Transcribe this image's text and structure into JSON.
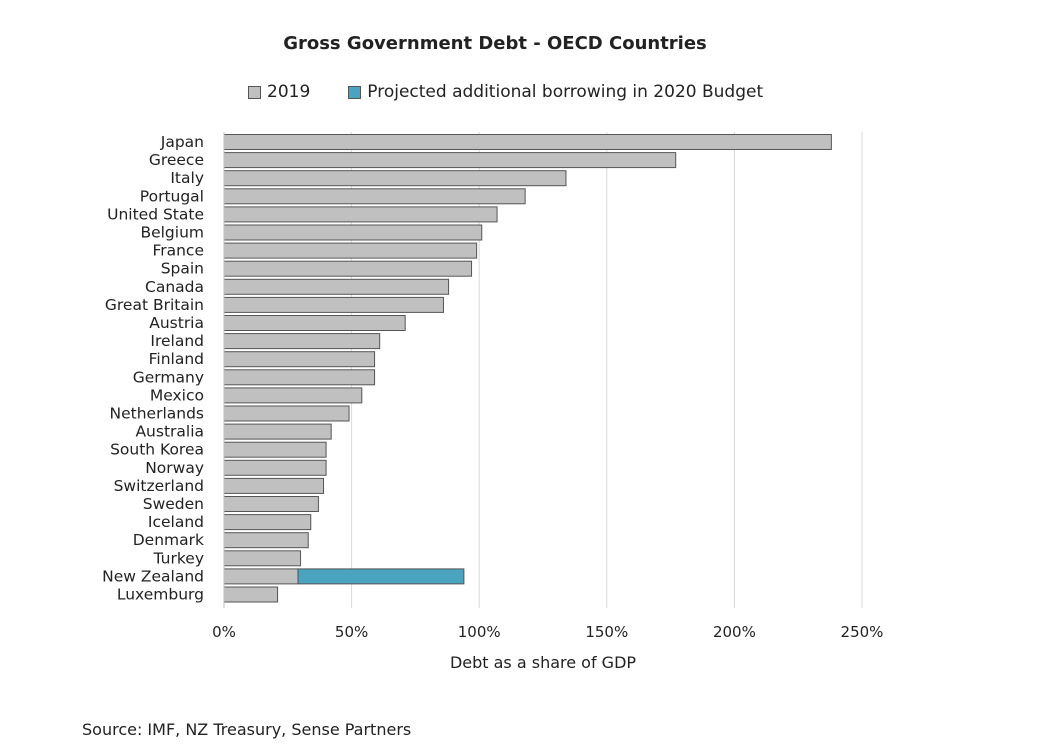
{
  "chart_data": {
    "type": "bar",
    "orientation": "horizontal",
    "stacked": true,
    "title": "Gross Government Debt - OECD Countries",
    "xlabel": "Debt as a share of GDP",
    "ylabel": "",
    "xlim": [
      0,
      250
    ],
    "x_ticks": [
      "0%",
      "50%",
      "100%",
      "150%",
      "200%",
      "250%"
    ],
    "x_tick_values": [
      0,
      50,
      100,
      150,
      200,
      250
    ],
    "grid": "vertical",
    "legend_position": "top",
    "categories": [
      "Japan",
      "Greece",
      "Italy",
      "Portugal",
      "United State",
      "Belgium",
      "France",
      "Spain",
      "Canada",
      "Great Britain",
      "Austria",
      "Ireland",
      "Finland",
      "Germany",
      "Mexico",
      "Netherlands",
      "Australia",
      "South Korea",
      "Norway",
      "Switzerland",
      "Sweden",
      "Iceland",
      "Denmark",
      "Turkey",
      "New Zealand",
      "Luxemburg"
    ],
    "series": [
      {
        "name": "2019",
        "color": "#c0c0c0",
        "values": [
          238,
          177,
          134,
          118,
          107,
          101,
          99,
          97,
          88,
          86,
          71,
          61,
          59,
          59,
          54,
          49,
          42,
          40,
          40,
          39,
          37,
          34,
          33,
          30,
          29,
          21
        ]
      },
      {
        "name": "Projected additional borrowing in 2020 Budget",
        "color": "#4aa3bf",
        "values": [
          0,
          0,
          0,
          0,
          0,
          0,
          0,
          0,
          0,
          0,
          0,
          0,
          0,
          0,
          0,
          0,
          0,
          0,
          0,
          0,
          0,
          0,
          0,
          0,
          65,
          0
        ]
      }
    ]
  },
  "source_note": "Source: IMF, NZ Treasury, Sense Partners"
}
